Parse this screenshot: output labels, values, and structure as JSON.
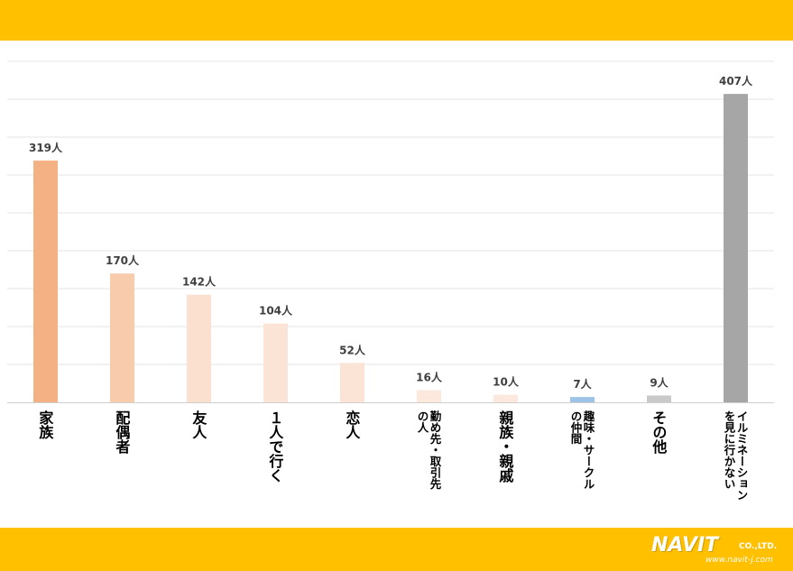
{
  "chart_data": {
    "type": "bar",
    "unit": "人",
    "categories": [
      "家族",
      "配偶者",
      "友人",
      "１人で行く",
      "恋人",
      "勤め先・取引先の人",
      "親族・親戚",
      "趣味・サークルの仲間",
      "その他",
      "イルミネーションを見に行かない"
    ],
    "values": [
      319,
      170,
      142,
      104,
      52,
      16,
      10,
      7,
      9,
      407
    ],
    "value_labels": [
      "319人",
      "170人",
      "142人",
      "104人",
      "52人",
      "16人",
      "10人",
      "7人",
      "9人",
      "407人"
    ],
    "category_lines": [
      [
        "家族"
      ],
      [
        "配偶者"
      ],
      [
        "友人"
      ],
      [
        "１人で行く"
      ],
      [
        "恋人"
      ],
      [
        "勤め先・取引先",
        "の人"
      ],
      [
        "親族・親戚"
      ],
      [
        "趣味・サークル",
        "の仲間"
      ],
      [
        "その他"
      ],
      [
        "イルミネーション",
        "を見に行かない"
      ]
    ],
    "colors": [
      "#f4b183",
      "#f8cbad",
      "#fbe0d0",
      "#fbe3d6",
      "#fbe3d6",
      "#fce8dd",
      "#fce8dd",
      "#9dc3e6",
      "#c9c9c9",
      "#a6a6a6"
    ],
    "ylim": [
      0,
      450
    ],
    "grid": true
  },
  "brand": {
    "logo_text": "NAVIT",
    "company_suffix": "CO.,LTD.",
    "url": "www.navit-j.com"
  }
}
